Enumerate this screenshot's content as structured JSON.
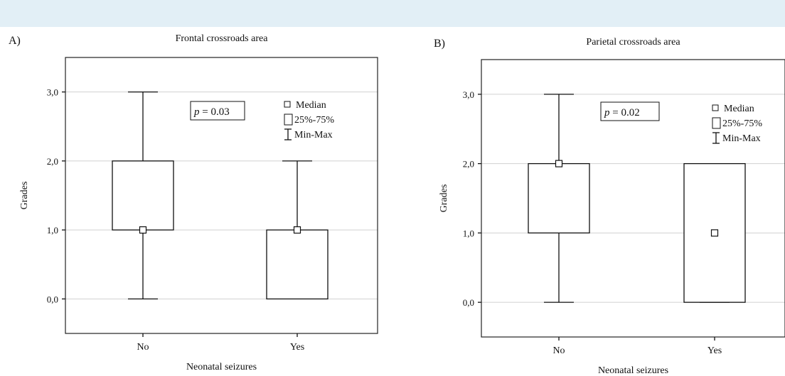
{
  "chart_data": [
    {
      "type": "box",
      "panel_label": "A)",
      "title": "Frontal crossroads area",
      "xlabel": "Neonatal seizures",
      "ylabel": "Grades",
      "categories": [
        "No",
        "Yes"
      ],
      "boxes": [
        {
          "category": "No",
          "median": 1.0,
          "q1": 1.0,
          "q3": 2.0,
          "min": 0.0,
          "max": 3.0
        },
        {
          "category": "Yes",
          "median": 1.0,
          "q1": 0.0,
          "q3": 1.0,
          "min": 0.0,
          "max": 2.0
        }
      ],
      "yticks": [
        "0,0",
        "1,0",
        "2,0",
        "3,0"
      ],
      "ylim": [
        -0.5,
        3.5
      ],
      "grid": true,
      "annotation": {
        "p_label": "p",
        "p_value": "= 0.03"
      },
      "legend": {
        "items": [
          "Median",
          "25%-75%",
          "Min-Max"
        ],
        "placement": "top-right"
      }
    },
    {
      "type": "box",
      "panel_label": "B)",
      "title": "Parietal crossroads area",
      "xlabel": "Neonatal seizures",
      "ylabel": "Grades",
      "categories": [
        "No",
        "Yes"
      ],
      "boxes": [
        {
          "category": "No",
          "median": 2.0,
          "q1": 1.0,
          "q3": 2.0,
          "min": 0.0,
          "max": 3.0
        },
        {
          "category": "Yes",
          "median": 1.0,
          "q1": 0.0,
          "q3": 2.0,
          "min": 0.0,
          "max": 2.0
        }
      ],
      "yticks": [
        "0,0",
        "1,0",
        "2,0",
        "3,0"
      ],
      "ylim": [
        -0.5,
        3.5
      ],
      "grid": true,
      "annotation": {
        "p_label": "p",
        "p_value": "= 0.02"
      },
      "legend": {
        "items": [
          "Median",
          "25%-75%",
          "Min-Max"
        ],
        "placement": "top-right"
      }
    }
  ]
}
